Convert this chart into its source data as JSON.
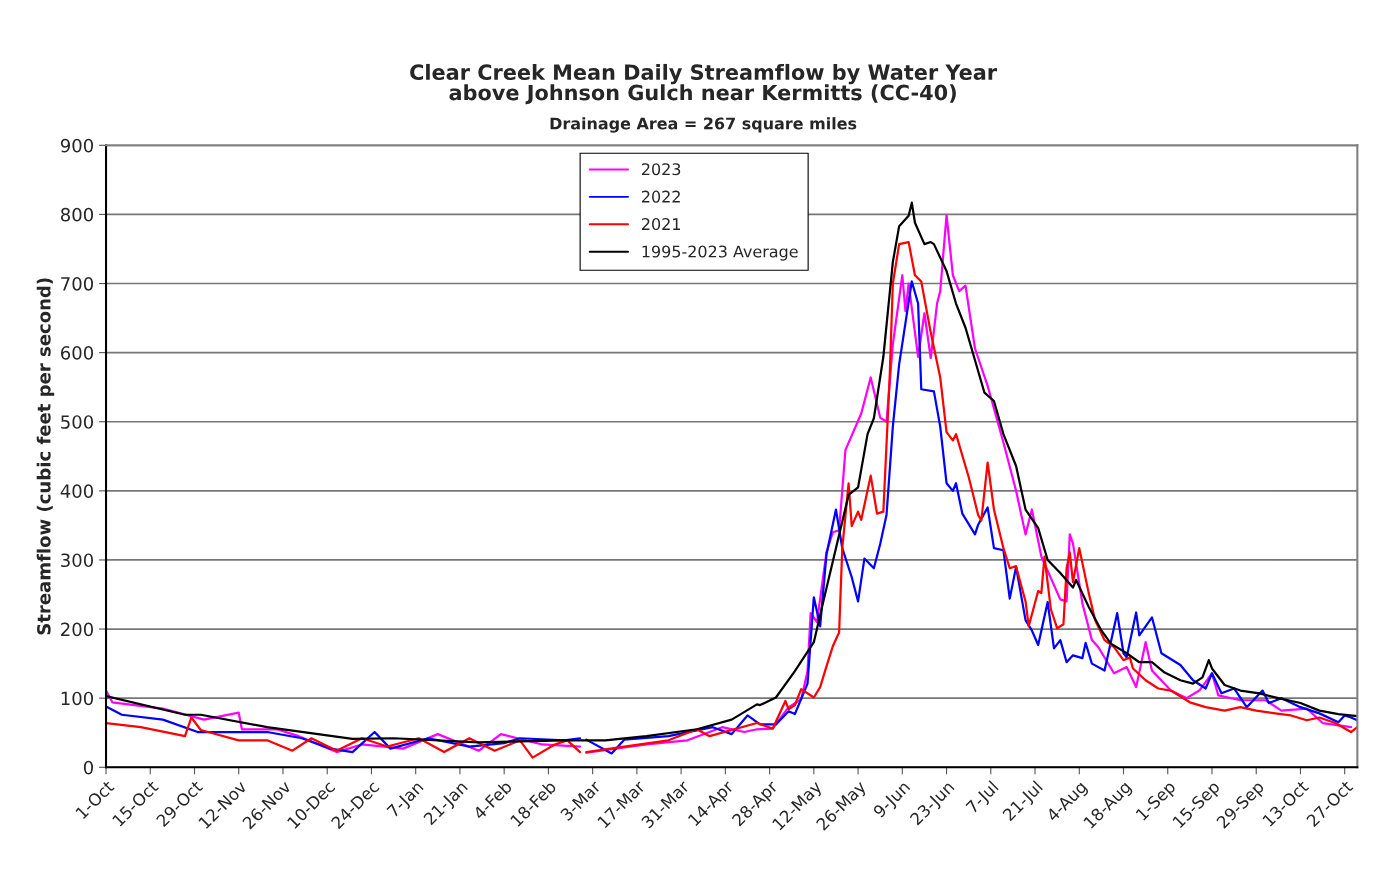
{
  "chart_data": {
    "type": "line",
    "title": "Clear Creek Mean Daily Streamflow by Water Year\nabove Johnson Gulch near Kermitts (CC-40)",
    "subtitle": "Drainage Area = 267 square miles",
    "ylabel": "Streamflow (cubic feet per second)",
    "xlim": [
      "2023-10-01",
      "2024-10-31"
    ],
    "ylim": [
      0,
      900
    ],
    "yticks": [
      0,
      100,
      200,
      300,
      400,
      500,
      600,
      700,
      800,
      900
    ],
    "xticks": [
      {
        "value": "2023-10-01",
        "label": "1-Oct"
      },
      {
        "value": "2023-10-15",
        "label": "15-Oct"
      },
      {
        "value": "2023-10-29",
        "label": "29-Oct"
      },
      {
        "value": "2023-11-12",
        "label": "12-Nov"
      },
      {
        "value": "2023-11-26",
        "label": "26-Nov"
      },
      {
        "value": "2023-12-10",
        "label": "10-Dec"
      },
      {
        "value": "2023-12-24",
        "label": "24-Dec"
      },
      {
        "value": "2024-01-07",
        "label": "7-Jan"
      },
      {
        "value": "2024-01-21",
        "label": "21-Jan"
      },
      {
        "value": "2024-02-04",
        "label": "4-Feb"
      },
      {
        "value": "2024-02-18",
        "label": "18-Feb"
      },
      {
        "value": "2024-03-03",
        "label": "3-Mar"
      },
      {
        "value": "2024-03-17",
        "label": "17-Mar"
      },
      {
        "value": "2024-03-31",
        "label": "31-Mar"
      },
      {
        "value": "2024-04-14",
        "label": "14-Apr"
      },
      {
        "value": "2024-04-28",
        "label": "28-Apr"
      },
      {
        "value": "2024-05-12",
        "label": "12-May"
      },
      {
        "value": "2024-05-26",
        "label": "26-May"
      },
      {
        "value": "2024-06-09",
        "label": "9-Jun"
      },
      {
        "value": "2024-06-23",
        "label": "23-Jun"
      },
      {
        "value": "2024-07-07",
        "label": "7-Jul"
      },
      {
        "value": "2024-07-21",
        "label": "21-Jul"
      },
      {
        "value": "2024-08-04",
        "label": "4-Aug"
      },
      {
        "value": "2024-08-18",
        "label": "18-Aug"
      },
      {
        "value": "2024-09-01",
        "label": "1-Sep"
      },
      {
        "value": "2024-09-15",
        "label": "15-Sep"
      },
      {
        "value": "2024-09-29",
        "label": "29-Sep"
      },
      {
        "value": "2024-10-13",
        "label": "13-Oct"
      },
      {
        "value": "2024-10-27",
        "label": "27-Oct"
      }
    ],
    "grid": "y",
    "legend": "top",
    "marker": "none",
    "line_style": "solid",
    "series": [
      {
        "name": "2023",
        "color": "#ff00ff",
        "x": [
          "2023-10-01",
          "2023-10-03",
          "2023-10-19",
          "2023-11-01",
          "2023-11-12",
          "2023-11-13",
          "2023-11-24",
          "2023-12-01",
          "2023-12-13",
          "2023-12-21",
          "2024-01-03",
          "2024-01-14",
          "2024-01-27",
          "2024-02-03",
          "2024-02-16",
          "2024-02-28",
          "2024-02-29",
          "2024-03-01",
          "2024-03-20",
          "2024-04-02",
          "2024-04-13",
          "2024-04-20",
          "2024-04-24",
          "2024-04-29",
          "2024-05-04",
          "2024-05-08",
          "2024-05-10",
          "2024-05-11",
          "2024-05-13",
          "2024-05-16",
          "2024-05-18",
          "2024-05-20",
          "2024-05-22",
          "2024-05-27",
          "2024-05-30",
          "2024-06-02",
          "2024-06-04",
          "2024-06-06",
          "2024-06-09",
          "2024-06-10",
          "2024-06-11",
          "2024-06-14",
          "2024-06-16",
          "2024-06-18",
          "2024-06-20",
          "2024-06-21",
          "2024-06-23",
          "2024-06-25",
          "2024-06-27",
          "2024-06-29",
          "2024-07-02",
          "2024-07-06",
          "2024-07-11",
          "2024-07-15",
          "2024-07-18",
          "2024-07-20",
          "2024-07-23",
          "2024-07-29",
          "2024-07-31",
          "2024-08-01",
          "2024-08-02",
          "2024-08-05",
          "2024-08-08",
          "2024-08-10",
          "2024-08-15",
          "2024-08-19",
          "2024-08-22",
          "2024-08-25",
          "2024-08-27",
          "2024-09-02",
          "2024-09-07",
          "2024-09-11",
          "2024-09-15",
          "2024-09-17",
          "2024-09-24",
          "2024-10-02",
          "2024-10-07",
          "2024-10-15",
          "2024-10-20",
          "2024-10-29"
        ],
        "values": [
          111,
          94,
          85,
          69,
          79,
          55,
          55,
          45,
          22,
          33,
          27,
          48,
          24,
          48,
          33,
          30,
          null,
          21,
          33,
          39,
          58,
          51,
          55,
          56,
          87,
          98,
          139,
          223,
          210,
          311,
          340,
          343,
          459,
          512,
          564,
          506,
          500,
          612,
          712,
          660,
          700,
          594,
          657,
          592,
          671,
          689,
          799,
          712,
          689,
          697,
          606,
          552,
          470,
          400,
          337,
          373,
          305,
          243,
          240,
          337,
          324,
          237,
          184,
          174,
          136,
          145,
          116,
          181,
          140,
          111,
          100,
          111,
          136,
          104,
          97,
          97,
          82,
          85,
          64,
          58
        ]
      },
      {
        "name": "2022",
        "color": "#0000ff",
        "x": [
          "2023-10-01",
          "2023-10-06",
          "2023-10-19",
          "2023-10-30",
          "2023-11-08",
          "2023-11-21",
          "2023-12-02",
          "2023-12-11",
          "2023-12-18",
          "2023-12-25",
          "2023-12-30",
          "2024-01-11",
          "2024-01-24",
          "2024-02-04",
          "2024-02-09",
          "2024-02-23",
          "2024-02-28",
          "2024-02-29",
          "2024-03-01",
          "2024-03-09",
          "2024-03-13",
          "2024-03-27",
          "2024-04-10",
          "2024-04-16",
          "2024-04-21",
          "2024-04-25",
          "2024-04-30",
          "2024-05-04",
          "2024-05-06",
          "2024-05-10",
          "2024-05-12",
          "2024-05-14",
          "2024-05-16",
          "2024-05-19",
          "2024-05-21",
          "2024-05-24",
          "2024-05-26",
          "2024-05-28",
          "2024-05-31",
          "2024-06-02",
          "2024-06-04",
          "2024-06-06",
          "2024-06-08",
          "2024-06-12",
          "2024-06-14",
          "2024-06-15",
          "2024-06-19",
          "2024-06-21",
          "2024-06-23",
          "2024-06-25",
          "2024-06-26",
          "2024-06-28",
          "2024-07-02",
          "2024-07-03",
          "2024-07-06",
          "2024-07-08",
          "2024-07-11",
          "2024-07-13",
          "2024-07-15",
          "2024-07-18",
          "2024-07-20",
          "2024-07-22",
          "2024-07-25",
          "2024-07-27",
          "2024-07-29",
          "2024-07-31",
          "2024-08-02",
          "2024-08-05",
          "2024-08-06",
          "2024-08-08",
          "2024-08-12",
          "2024-08-16",
          "2024-08-18",
          "2024-08-19",
          "2024-08-22",
          "2024-08-23",
          "2024-08-27",
          "2024-08-30",
          "2024-09-05",
          "2024-09-09",
          "2024-09-13",
          "2024-09-15",
          "2024-09-18",
          "2024-09-22",
          "2024-09-26",
          "2024-10-01",
          "2024-10-03",
          "2024-10-07",
          "2024-10-13",
          "2024-10-19",
          "2024-10-25",
          "2024-10-27",
          "2024-10-29",
          "2024-10-31"
        ],
        "values": [
          88,
          76,
          69,
          51,
          51,
          51,
          42,
          27,
          22,
          51,
          27,
          42,
          30,
          35,
          42,
          39,
          42,
          null,
          40,
          20,
          40,
          45,
          58,
          48,
          75,
          62,
          62,
          81,
          77,
          121,
          246,
          204,
          308,
          373,
          317,
          275,
          240,
          302,
          288,
          323,
          365,
          493,
          583,
          703,
          671,
          547,
          544,
          493,
          411,
          400,
          411,
          367,
          337,
          351,
          376,
          317,
          314,
          244,
          290,
          213,
          198,
          177,
          239,
          172,
          184,
          152,
          162,
          158,
          180,
          150,
          140,
          223,
          165,
          159,
          224,
          191,
          217,
          165,
          148,
          126,
          114,
          136,
          107,
          114,
          87,
          111,
          93,
          100,
          87,
          78,
          65,
          75,
          72,
          68
        ]
      },
      {
        "name": "2021",
        "color": "#ff0000",
        "x": [
          "2023-10-01",
          "2023-10-12",
          "2023-10-26",
          "2023-10-28",
          "2023-10-31",
          "2023-11-12",
          "2023-11-21",
          "2023-11-29",
          "2023-12-05",
          "2023-12-13",
          "2023-12-21",
          "2023-12-29",
          "2024-01-08",
          "2024-01-16",
          "2024-01-24",
          "2024-02-01",
          "2024-02-09",
          "2024-02-13",
          "2024-02-20",
          "2024-02-24",
          "2024-02-28",
          "2024-02-29",
          "2024-03-01",
          "2024-03-13",
          "2024-03-27",
          "2024-04-05",
          "2024-04-09",
          "2024-04-24",
          "2024-04-29",
          "2024-05-03",
          "2024-05-04",
          "2024-05-06",
          "2024-05-08",
          "2024-05-12",
          "2024-05-14",
          "2024-05-16",
          "2024-05-18",
          "2024-05-20",
          "2024-05-21",
          "2024-05-23",
          "2024-05-24",
          "2024-05-26",
          "2024-05-27",
          "2024-05-30",
          "2024-06-01",
          "2024-06-03",
          "2024-06-05",
          "2024-06-06",
          "2024-06-08",
          "2024-06-11",
          "2024-06-13",
          "2024-06-15",
          "2024-06-18",
          "2024-06-21",
          "2024-06-23",
          "2024-06-25",
          "2024-06-26",
          "2024-06-30",
          "2024-07-01",
          "2024-07-03",
          "2024-07-04",
          "2024-07-06",
          "2024-07-08",
          "2024-07-11",
          "2024-07-13",
          "2024-07-15",
          "2024-07-18",
          "2024-07-19",
          "2024-07-22",
          "2024-07-23",
          "2024-07-24",
          "2024-07-26",
          "2024-07-28",
          "2024-07-30",
          "2024-07-31",
          "2024-08-01",
          "2024-08-02",
          "2024-08-04",
          "2024-08-07",
          "2024-08-09",
          "2024-08-12",
          "2024-08-15",
          "2024-08-18",
          "2024-08-20",
          "2024-08-21",
          "2024-08-25",
          "2024-08-29",
          "2024-09-02",
          "2024-09-08",
          "2024-09-13",
          "2024-09-19",
          "2024-09-24",
          "2024-09-29",
          "2024-10-05",
          "2024-10-10",
          "2024-10-15",
          "2024-10-19",
          "2024-10-24",
          "2024-10-29",
          "2024-10-31"
        ],
        "values": [
          64,
          58,
          45,
          72,
          54,
          39,
          39,
          24,
          42,
          24,
          42,
          30,
          42,
          22,
          42,
          24,
          39,
          14,
          33,
          39,
          22,
          null,
          22,
          30,
          39,
          55,
          45,
          64,
          56,
          96,
          84,
          90,
          113,
          101,
          116,
          146,
          175,
          195,
          317,
          411,
          349,
          370,
          358,
          422,
          367,
          370,
          564,
          700,
          757,
          760,
          712,
          703,
          629,
          564,
          485,
          473,
          482,
          420,
          402,
          365,
          357,
          441,
          373,
          317,
          288,
          291,
          240,
          204,
          255,
          252,
          305,
          229,
          201,
          207,
          288,
          311,
          268,
          317,
          252,
          213,
          184,
          174,
          155,
          159,
          143,
          126,
          114,
          111,
          94,
          87,
          82,
          87,
          82,
          78,
          75,
          68,
          72,
          64,
          51,
          58
        ]
      },
      {
        "name": "1995-2023 Average",
        "color": "#000000",
        "x": [
          "2023-10-01",
          "2023-10-26",
          "2023-10-31",
          "2023-11-21",
          "2023-12-18",
          "2023-12-31",
          "2024-01-27",
          "2024-02-23",
          "2024-03-07",
          "2024-03-20",
          "2024-04-05",
          "2024-04-16",
          "2024-04-24",
          "2024-04-25",
          "2024-04-30",
          "2024-05-06",
          "2024-05-12",
          "2024-05-15",
          "2024-05-19",
          "2024-05-23",
          "2024-05-26",
          "2024-05-29",
          "2024-05-31",
          "2024-06-03",
          "2024-06-06",
          "2024-06-08",
          "2024-06-11",
          "2024-06-12",
          "2024-06-13",
          "2024-06-16",
          "2024-06-18",
          "2024-06-19",
          "2024-06-23",
          "2024-06-26",
          "2024-06-29",
          "2024-07-02",
          "2024-07-05",
          "2024-07-08",
          "2024-07-11",
          "2024-07-15",
          "2024-07-18",
          "2024-07-22",
          "2024-07-25",
          "2024-07-29",
          "2024-08-02",
          "2024-08-03",
          "2024-08-07",
          "2024-08-11",
          "2024-08-14",
          "2024-08-19",
          "2024-08-23",
          "2024-08-27",
          "2024-08-31",
          "2024-09-05",
          "2024-09-09",
          "2024-09-12",
          "2024-09-14",
          "2024-09-15",
          "2024-09-19",
          "2024-09-24",
          "2024-09-30",
          "2024-10-06",
          "2024-10-13",
          "2024-10-19",
          "2024-10-25",
          "2024-10-31"
        ],
        "values": [
          103,
          76,
          76,
          58,
          41,
          42,
          36,
          39,
          39,
          45,
          55,
          69,
          91,
          90,
          101,
          139,
          181,
          240,
          317,
          394,
          405,
          482,
          505,
          594,
          731,
          783,
          798,
          817,
          788,
          757,
          760,
          757,
          718,
          671,
          636,
          589,
          542,
          530,
          482,
          436,
          373,
          346,
          300,
          281,
          260,
          271,
          232,
          198,
          179,
          165,
          152,
          152,
          137,
          126,
          121,
          130,
          155,
          143,
          119,
          111,
          107,
          100,
          93,
          82,
          77,
          74
        ]
      }
    ]
  }
}
